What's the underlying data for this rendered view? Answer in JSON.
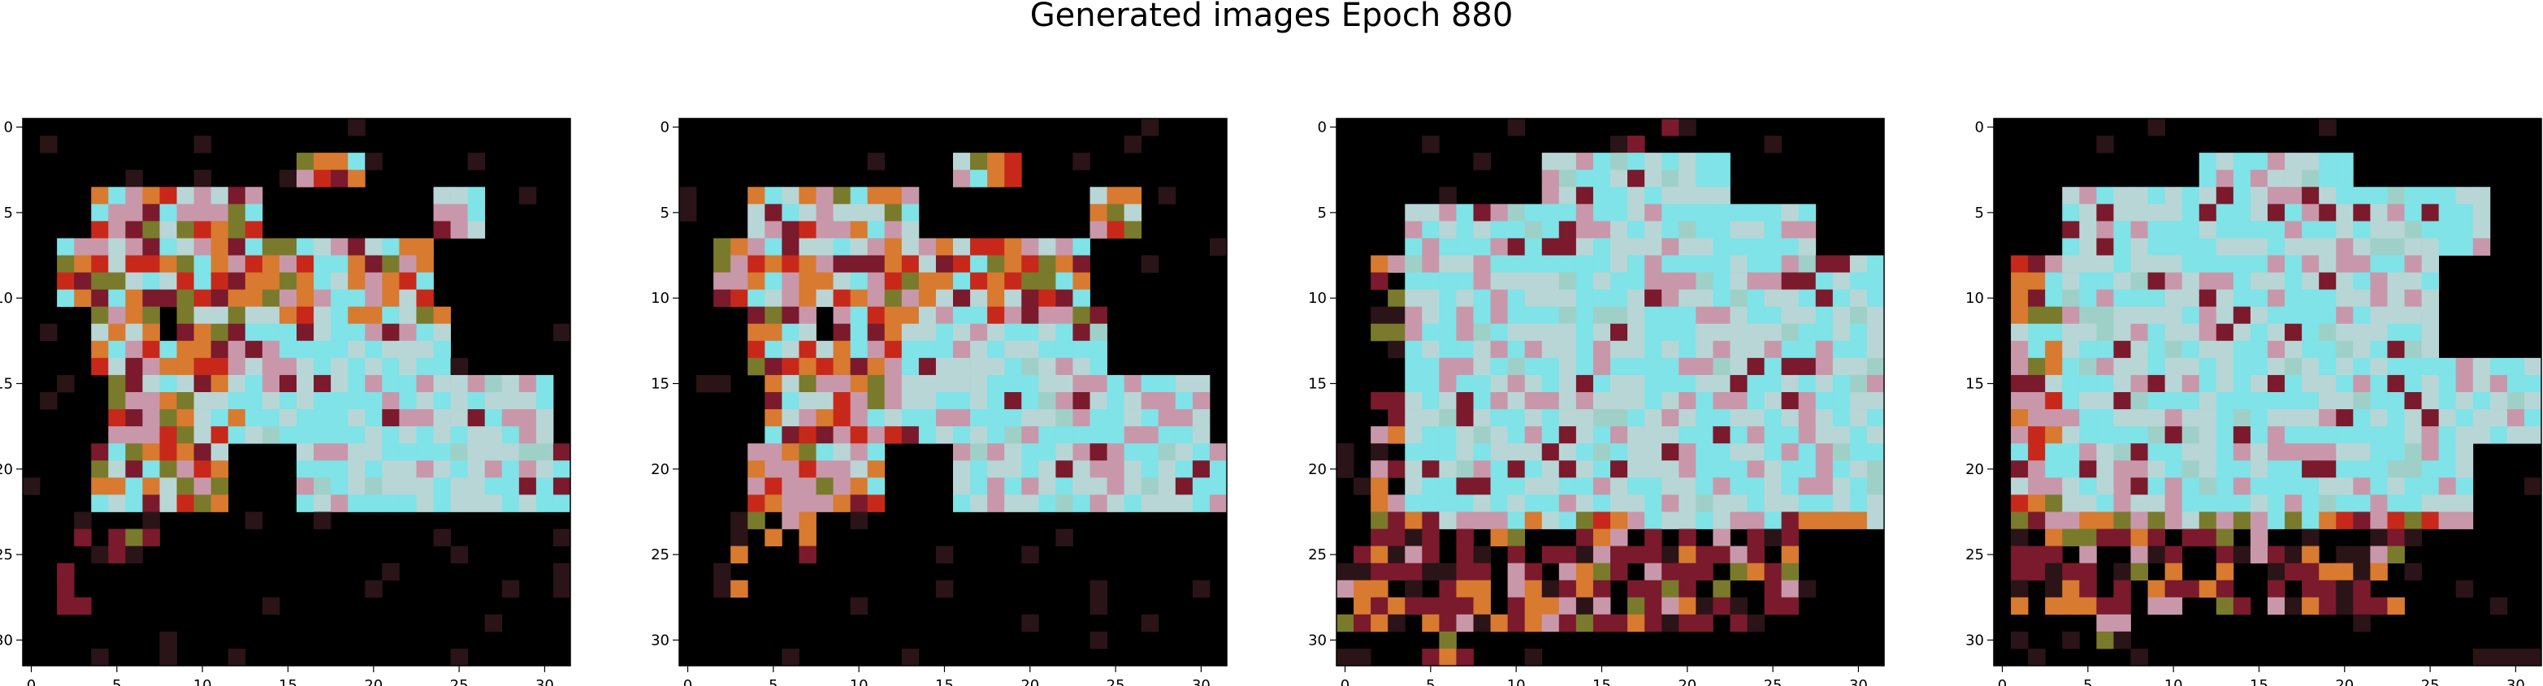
{
  "title": "Generated images Epoch 880",
  "chart_data": {
    "type": "heatmap",
    "title": "Generated images Epoch 880",
    "panel_count": 4,
    "grid_size": [
      32,
      32
    ],
    "x_ticks": [
      "0",
      "5",
      "10",
      "15",
      "20",
      "25",
      "30"
    ],
    "y_ticks": [
      "0",
      "5",
      "10",
      "15",
      "20",
      "25",
      "30"
    ],
    "xlim": [
      -0.5,
      31.5
    ],
    "ylim": [
      31.5,
      -0.5
    ],
    "background_color": "#000000",
    "palette": {
      "cyan": "#7fe3e8",
      "pale": "#b8d6d6",
      "pink": "#c898aa",
      "maroon": "#7a1a2c",
      "orange": "#d87a30",
      "red": "#c8281a",
      "olive": "#7a7a2c",
      "dark": "#2a1418"
    }
  }
}
